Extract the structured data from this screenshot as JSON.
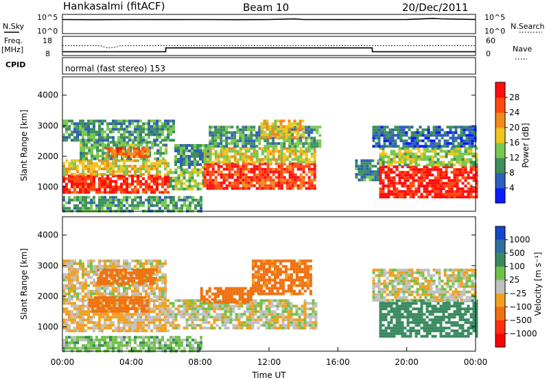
{
  "header": {
    "station": "Hankasalmi (fitACF)",
    "beam": "Beam 10",
    "date": "20/Dec/2011"
  },
  "top_panels": {
    "nsky_label": "N.Sky",
    "nsky_ticks": [
      "10^5",
      "10^0"
    ],
    "nsearch_label": "N.Search",
    "nsearch_ticks": [
      "10^5",
      "10^0"
    ],
    "freq_label": "Freq.",
    "freq_unit": "[MHz]",
    "freq_ticks": [
      "18",
      "8"
    ],
    "nave_label": "Nave",
    "nave_ticks": [
      "60",
      "0"
    ],
    "cpid_label": "CPID",
    "cpid_text": "normal (fast stereo) 153"
  },
  "chart_data": [
    {
      "type": "line",
      "name": "nsky-nsearch",
      "yscale": "log",
      "ylim": [
        1,
        100000
      ],
      "xlim": [
        0,
        24
      ],
      "series": [
        {
          "name": "N.Sky",
          "style": "solid",
          "x": [
            0,
            2,
            4,
            6,
            8,
            10,
            12,
            13.5,
            14,
            16,
            18,
            20,
            21.5,
            22,
            24
          ],
          "y": [
            4500,
            4300,
            4600,
            4400,
            4500,
            4300,
            4600,
            6500,
            4500,
            4400,
            4600,
            4800,
            9000,
            7000,
            4800
          ]
        }
      ]
    },
    {
      "type": "line",
      "name": "freq-nave",
      "ylim_left": [
        8,
        18
      ],
      "ylim_right": [
        0,
        60
      ],
      "xlim": [
        0,
        24
      ],
      "series": [
        {
          "name": "Freq.",
          "style": "solid",
          "axis": "left",
          "x": [
            0,
            6,
            6,
            18,
            18,
            24
          ],
          "y": [
            10,
            10,
            12,
            12,
            10,
            10
          ]
        },
        {
          "name": "Nave",
          "style": "dotted",
          "axis": "right",
          "x": [
            0,
            2.2,
            2.6,
            3.0,
            3.4,
            24
          ],
          "y": [
            31,
            31,
            24,
            25,
            31,
            31
          ]
        }
      ]
    },
    {
      "type": "heatmap",
      "name": "power",
      "xlabel": "",
      "ylabel": "Slant Range [km]",
      "ylim": [
        200,
        4600
      ],
      "xlim": [
        0,
        24
      ],
      "yticks": [
        1000,
        2000,
        3000,
        4000
      ],
      "colorbar": {
        "label": "Power [dB]",
        "ticks": [
          "4",
          "8",
          "12",
          "16",
          "20",
          "24",
          "28"
        ],
        "colors": [
          "#0a1cff",
          "#2f5fb8",
          "#3e8f5c",
          "#78c850",
          "#f0c51f",
          "#f08a1c",
          "#ff4a10",
          "#ff0d0d"
        ]
      },
      "bands": [
        {
          "t0": 0.0,
          "t1": 6.2,
          "r0": 850,
          "r1": 1400,
          "v": 28
        },
        {
          "t0": 0.0,
          "t1": 6.2,
          "r0": 1400,
          "r1": 1900,
          "v": 18
        },
        {
          "t0": 1.0,
          "t1": 6.0,
          "r0": 1900,
          "r1": 2500,
          "v": 12
        },
        {
          "t0": 0.0,
          "t1": 6.5,
          "r0": 2500,
          "r1": 3200,
          "v": 10
        },
        {
          "t0": 2.5,
          "t1": 5.0,
          "r0": 2000,
          "r1": 2300,
          "v": 24
        },
        {
          "t0": 6.2,
          "t1": 8.2,
          "r0": 900,
          "r1": 1600,
          "v": 14
        },
        {
          "t0": 6.5,
          "t1": 8.5,
          "r0": 1600,
          "r1": 2400,
          "v": 10
        },
        {
          "t0": 8.2,
          "t1": 14.6,
          "r0": 950,
          "r1": 1800,
          "v": 27
        },
        {
          "t0": 8.2,
          "t1": 14.6,
          "r0": 1800,
          "r1": 2300,
          "v": 17
        },
        {
          "t0": 8.5,
          "t1": 15.0,
          "r0": 2300,
          "r1": 3000,
          "v": 11
        },
        {
          "t0": 11.5,
          "t1": 14.0,
          "r0": 2600,
          "r1": 3200,
          "v": 19
        },
        {
          "t0": 17.0,
          "t1": 18.4,
          "r0": 1200,
          "r1": 1900,
          "v": 9
        },
        {
          "t0": 18.4,
          "t1": 24.0,
          "r0": 700,
          "r1": 1700,
          "v": 29
        },
        {
          "t0": 18.4,
          "t1": 24.0,
          "r0": 1700,
          "r1": 2300,
          "v": 15
        },
        {
          "t0": 18.0,
          "t1": 24.0,
          "r0": 2300,
          "r1": 3000,
          "v": 7
        },
        {
          "t0": 0.0,
          "t1": 8.0,
          "r0": 250,
          "r1": 700,
          "v": 11
        }
      ]
    },
    {
      "type": "heatmap",
      "name": "velocity",
      "xlabel": "Time UT",
      "ylabel": "Slant Range [km]",
      "ylim": [
        200,
        4600
      ],
      "xlim": [
        0,
        24
      ],
      "xticks": [
        "00:00",
        "04:00",
        "08:00",
        "12:00",
        "16:00",
        "20:00",
        "00:00"
      ],
      "yticks": [
        1000,
        2000,
        3000,
        4000
      ],
      "colorbar": {
        "label": "Velocity [m s⁻¹]",
        "ticks": [
          "1000",
          "500",
          "100",
          "25",
          "−25",
          "−100",
          "−500",
          "−1000"
        ],
        "colors": [
          "#1448c8",
          "#2f6fa0",
          "#3a8a60",
          "#6fc248",
          "#c0c0c0",
          "#f0a020",
          "#f07010",
          "#ff3010",
          "#ff0000"
        ]
      },
      "bands": [
        {
          "t0": 0.0,
          "t1": 6.2,
          "r0": 850,
          "r1": 1900,
          "v": -40
        },
        {
          "t0": 0.0,
          "t1": 6.0,
          "r0": 1900,
          "r1": 3200,
          "v": -20
        },
        {
          "t0": 1.5,
          "t1": 5.0,
          "r0": 1500,
          "r1": 2000,
          "v": -200
        },
        {
          "t0": 2.0,
          "t1": 5.5,
          "r0": 2400,
          "r1": 2900,
          "v": -300
        },
        {
          "t0": 6.2,
          "t1": 14.8,
          "r0": 950,
          "r1": 1900,
          "v": 0
        },
        {
          "t0": 8.0,
          "t1": 11.0,
          "r0": 1800,
          "r1": 2300,
          "v": -200
        },
        {
          "t0": 11.0,
          "t1": 14.5,
          "r0": 2100,
          "r1": 3200,
          "v": -150
        },
        {
          "t0": 18.4,
          "t1": 24.0,
          "r0": 700,
          "r1": 1900,
          "v": 350
        },
        {
          "t0": 18.0,
          "t1": 24.0,
          "r0": 1900,
          "r1": 2900,
          "v": 0
        },
        {
          "t0": 0.0,
          "t1": 8.0,
          "r0": 250,
          "r1": 700,
          "v": 60
        }
      ]
    }
  ]
}
